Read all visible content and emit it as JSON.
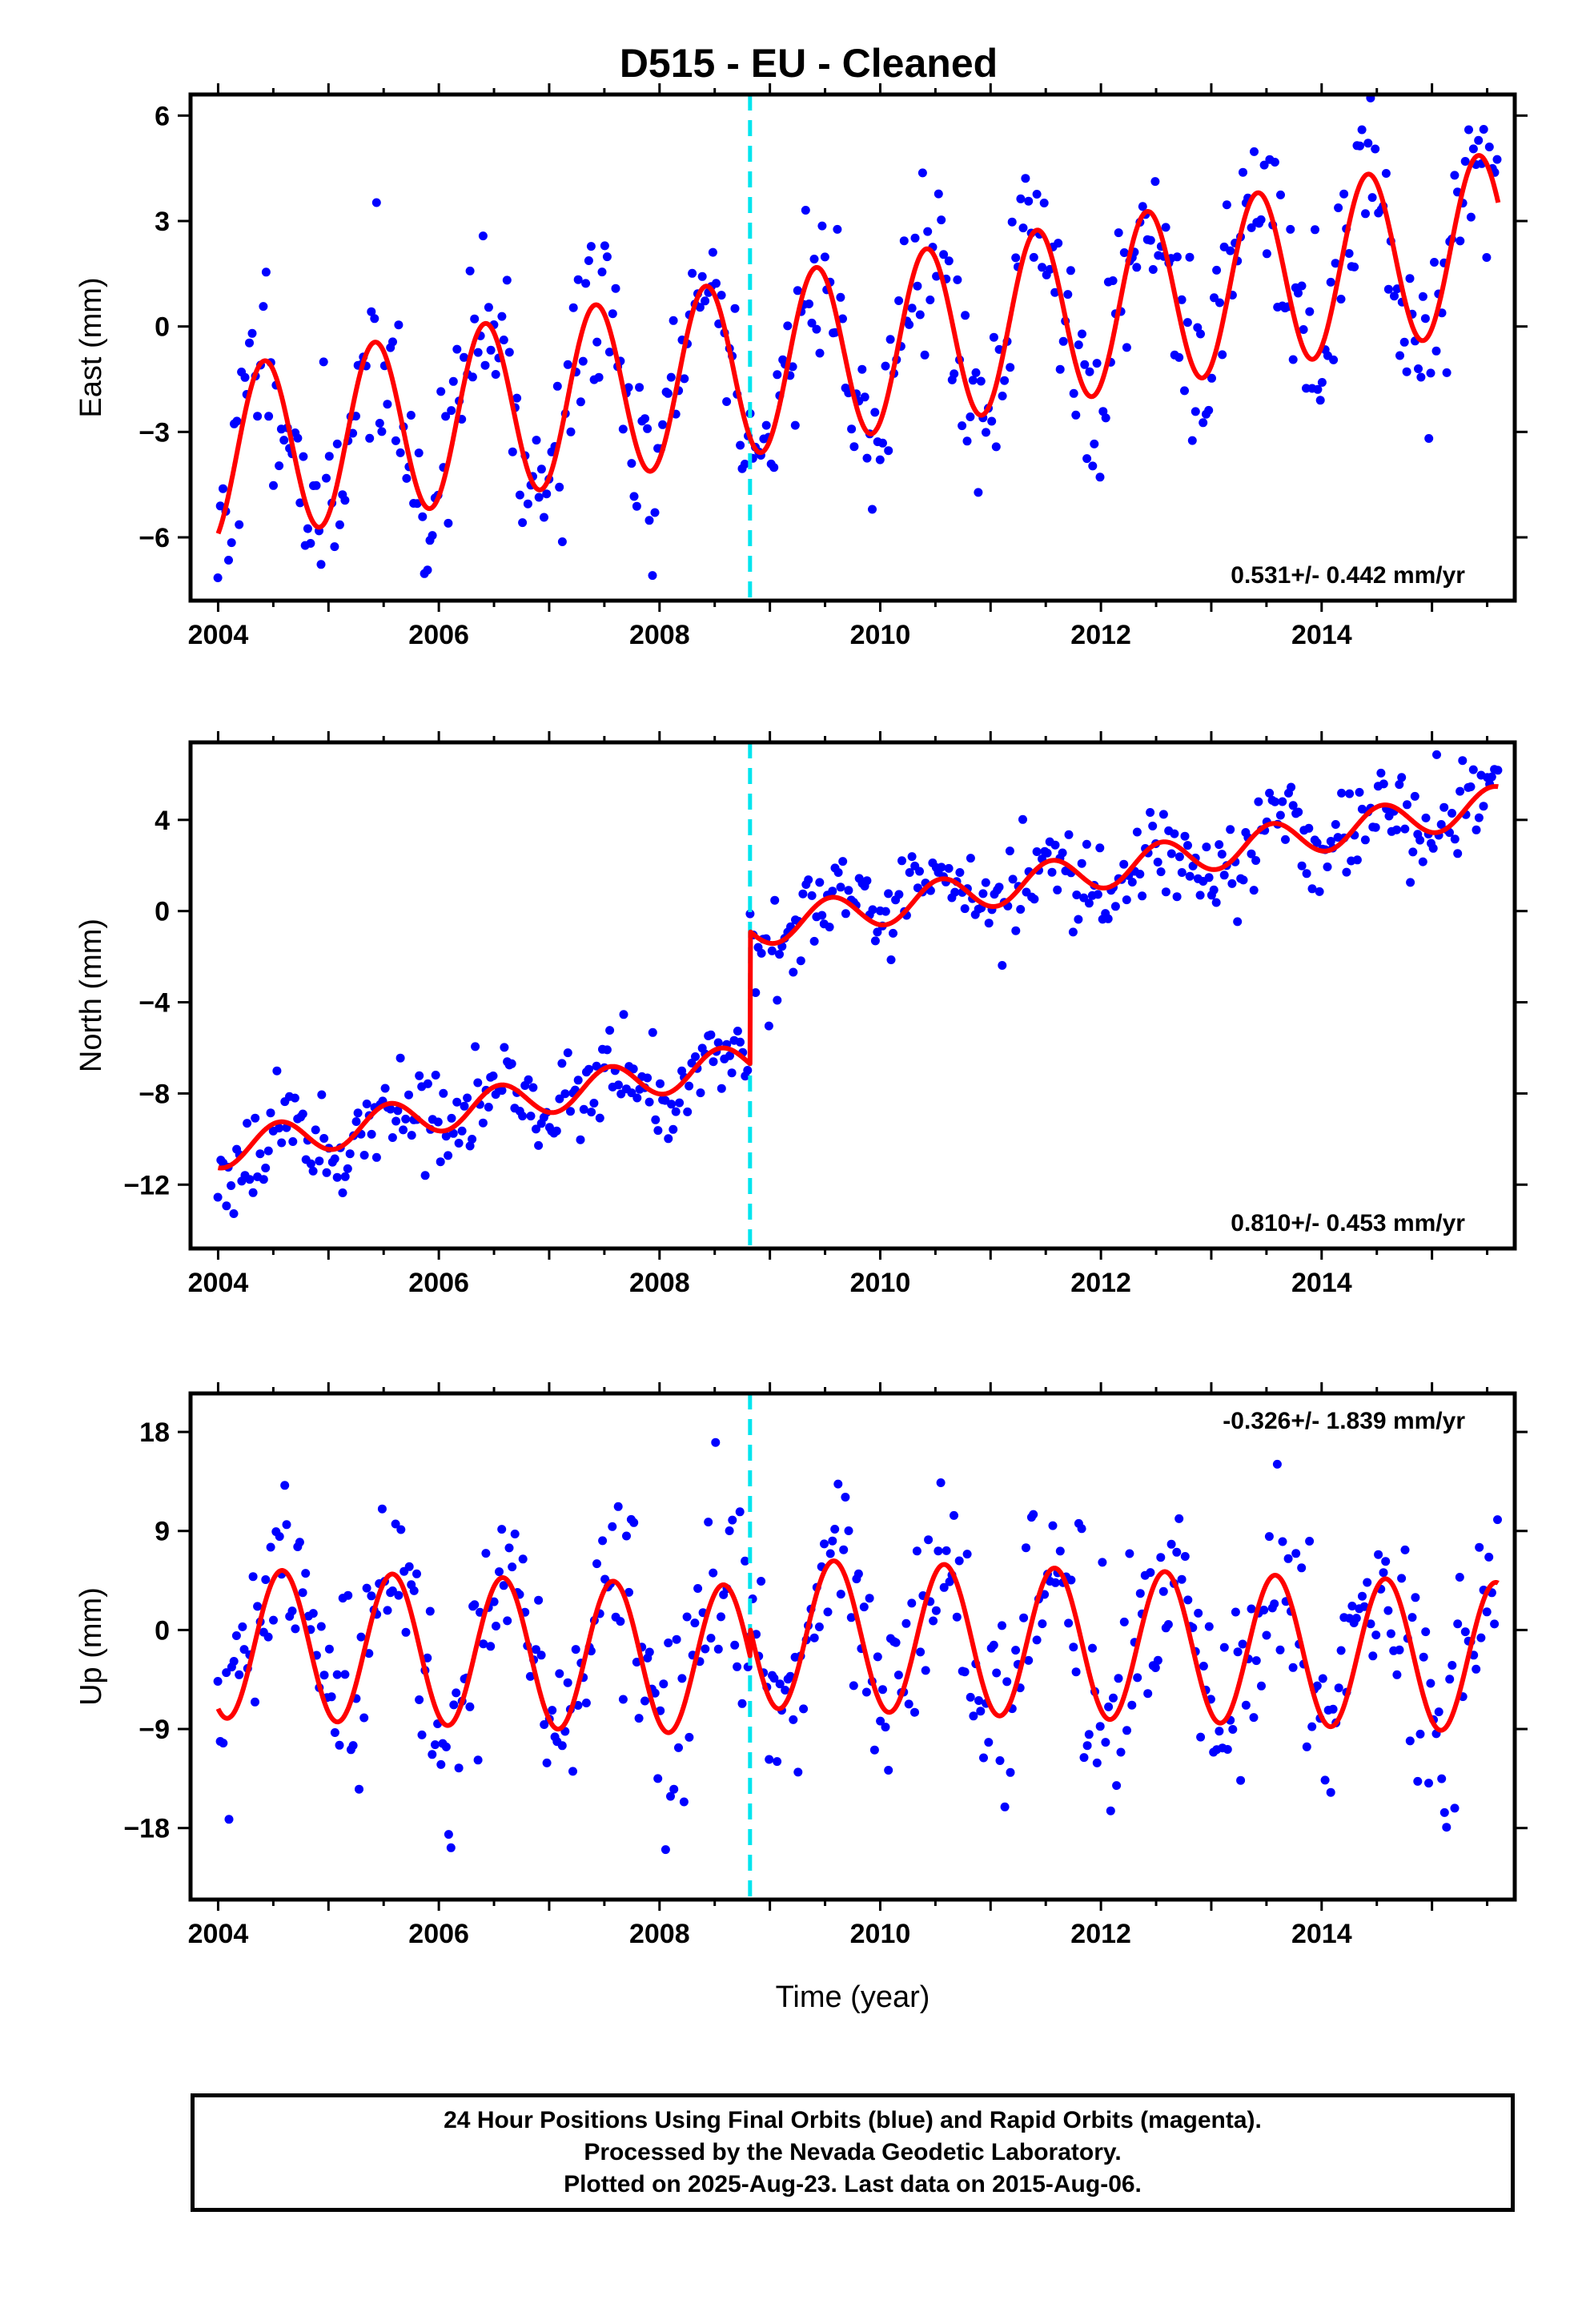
{
  "title": "D515  - EU - Cleaned",
  "xlabel": "Time (year)",
  "footer": {
    "line1": "24 Hour Positions Using Final Orbits (blue) and Rapid Orbits (magenta).",
    "line2": "Processed by the Nevada Geodetic Laboratory.",
    "line3": "Plotted on 2025-Aug-23. Last data on 2015-Aug-06."
  },
  "colors": {
    "data": "#0000ff",
    "model": "#ff0000",
    "offset_line": "#00e5ee"
  },
  "chart_data": [
    {
      "type": "scatter",
      "component": "east",
      "ylabel": "East (mm)",
      "xlim": [
        2003.75,
        2015.75
      ],
      "ylim": [
        -7.8,
        6.6
      ],
      "yticks": [
        -6,
        -3,
        0,
        3,
        6
      ],
      "xticks": [
        2004,
        2006,
        2008,
        2010,
        2012,
        2014
      ],
      "rate_text": "0.531+/- 0.442 mm/yr",
      "offset_epoch": 2008.82,
      "model": {
        "intercept": -3.7,
        "rate": 0.531,
        "amplitude": 2.5,
        "phase_peak": 0.42,
        "step": 0,
        "noise_sd": 1.3,
        "seed": 11
      },
      "series": [
        {
          "kind": "Final Orbits (blue)",
          "role": "observations"
        },
        {
          "kind": "model",
          "role": "fit"
        }
      ]
    },
    {
      "type": "scatter",
      "component": "north",
      "ylabel": "North (mm)",
      "xlim": [
        2003.75,
        2015.75
      ],
      "ylim": [
        -14.8,
        7.4
      ],
      "yticks": [
        -12,
        -8,
        -4,
        0,
        4
      ],
      "xticks": [
        2004,
        2006,
        2008,
        2010,
        2012,
        2014
      ],
      "rate_text": "0.810+/- 0.453 mm/yr",
      "offset_epoch": 2008.82,
      "model": {
        "intercept": -10.5,
        "rate": 0.81,
        "amplitude": 0.8,
        "phase_peak": 0.55,
        "step": 5.8,
        "noise_sd": 1.0,
        "seed": 23
      },
      "series": [
        {
          "kind": "Final Orbits (blue)",
          "role": "observations"
        },
        {
          "kind": "model",
          "role": "fit"
        }
      ]
    },
    {
      "type": "scatter",
      "component": "up",
      "ylabel": "Up (mm)",
      "xlim": [
        2003.75,
        2015.75
      ],
      "ylim": [
        -24.5,
        21.5
      ],
      "yticks": [
        -18,
        -9,
        0,
        9,
        18
      ],
      "xticks": [
        2004,
        2006,
        2008,
        2010,
        2012,
        2014
      ],
      "rate_text": "-0.326+/- 1.839 mm/yr",
      "offset_epoch": 2008.82,
      "model": {
        "intercept": -1.2,
        "rate": -0.326,
        "amplitude": 6.8,
        "phase_peak": 0.58,
        "step": 2.5,
        "noise_sd": 4.5,
        "seed": 37
      },
      "series": [
        {
          "kind": "Final Orbits (blue)",
          "role": "observations"
        },
        {
          "kind": "model",
          "role": "fit"
        }
      ]
    }
  ]
}
